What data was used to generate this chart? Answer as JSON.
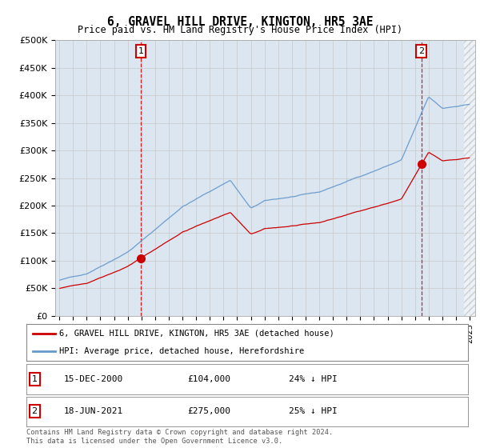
{
  "title": "6, GRAVEL HILL DRIVE, KINGTON, HR5 3AE",
  "subtitle": "Price paid vs. HM Land Registry's House Price Index (HPI)",
  "legend_line1": "6, GRAVEL HILL DRIVE, KINGTON, HR5 3AE (detached house)",
  "legend_line2": "HPI: Average price, detached house, Herefordshire",
  "annotation1_date": "15-DEC-2000",
  "annotation1_price": "£104,000",
  "annotation1_hpi": "24% ↓ HPI",
  "annotation2_date": "18-JUN-2021",
  "annotation2_price": "£275,000",
  "annotation2_hpi": "25% ↓ HPI",
  "footer": "Contains HM Land Registry data © Crown copyright and database right 2024.\nThis data is licensed under the Open Government Licence v3.0.",
  "hpi_color": "#6699cc",
  "price_color": "#cc0000",
  "marker_color": "#cc0000",
  "dashed_line_color": "#cc0000",
  "annotation_box_color": "#cc0000",
  "background_color": "#dce6f1",
  "plot_bg_color": "#ffffff",
  "grid_color": "#c8c8c8",
  "ylim": [
    0,
    500000
  ],
  "ytick_vals": [
    0,
    50000,
    100000,
    150000,
    200000,
    250000,
    300000,
    350000,
    400000,
    450000,
    500000
  ],
  "ytick_labels": [
    "£0",
    "£50K",
    "£100K",
    "£150K",
    "£200K",
    "£250K",
    "£300K",
    "£350K",
    "£400K",
    "£450K",
    "£500K"
  ],
  "xstart": 1995,
  "xend": 2025,
  "sale1_year": 2000.958,
  "sale1_price": 104000,
  "sale2_year": 2021.458,
  "sale2_price": 275000,
  "hpi_ratio1": 0.76,
  "hpi_ratio2": 0.75
}
